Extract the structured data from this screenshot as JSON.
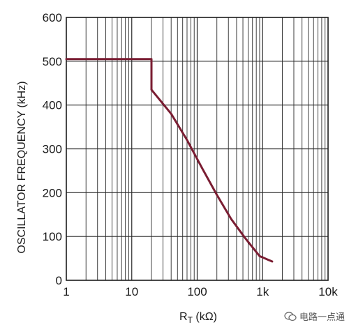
{
  "chart_data": {
    "type": "line",
    "title": "",
    "xlabel_main": "R",
    "xlabel_sub": "T",
    "xlabel_unit": " (kΩ)",
    "ylabel": "OSCILLATOR FREQUENCY (kHz)",
    "x_scale": "log",
    "xlim": [
      1,
      10000
    ],
    "ylim": [
      0,
      600
    ],
    "x_ticks": [
      1,
      10,
      100,
      1000,
      10000
    ],
    "x_tick_labels": [
      "1",
      "10",
      "100",
      "1k",
      "10k"
    ],
    "y_ticks": [
      0,
      100,
      200,
      300,
      400,
      500,
      600
    ],
    "y_tick_labels": [
      "0",
      "100",
      "200",
      "300",
      "400",
      "500",
      "600"
    ],
    "grid": true,
    "series": [
      {
        "color": "#7a1d32",
        "x": [
          1,
          20,
          20,
          40,
          70,
          120,
          200,
          330,
          550,
          900,
          1400
        ],
        "y": [
          505,
          505,
          435,
          380,
          320,
          255,
          195,
          140,
          95,
          55,
          43
        ]
      }
    ]
  },
  "watermark": {
    "text": "电路一点通",
    "icon": "wechat-icon"
  }
}
